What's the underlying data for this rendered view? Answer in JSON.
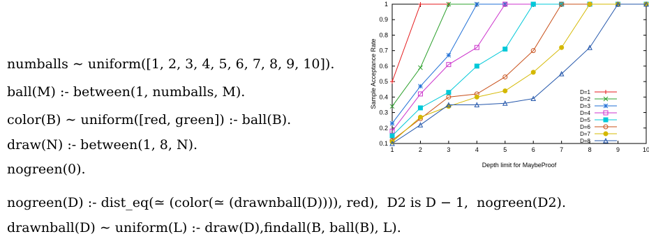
{
  "code": {
    "lines": [
      "numballs ∼ uniform([1, 2, 3, 4, 5, 6, 7, 8, 9, 10]).",
      "ball(M) :- between(1, numballs, M).",
      "color(B) ∼ uniform([red, green]) :- ball(B).",
      "draw(N) :- between(1, 8, N).",
      "nogreen(0).",
      "nogreen(D) :- dist_eq(≃ (color(≃ (drawnball(D)))), red),  D2 is D − 1,  nogreen(D2).",
      "drawnball(D) ∼ uniform(L) :- draw(D),findall(B, ball(B), L)."
    ]
  },
  "chart_data": {
    "type": "line",
    "xlabel": "Depth limit for MaybeProof",
    "ylabel": "Sample Acceptance Rate",
    "xlim": [
      1,
      10
    ],
    "ylim": [
      0.1,
      1
    ],
    "xticks": [
      "1",
      "2",
      "3",
      "4",
      "5",
      "6",
      "7",
      "8",
      "9",
      "10"
    ],
    "yticks": [
      "0.1",
      "0.2",
      "0.3",
      "0.4",
      "0.5",
      "0.6",
      "0.7",
      "0.8",
      "0.9",
      "1"
    ],
    "legend_position": "bottom-right",
    "x": [
      1,
      2,
      3,
      4,
      5,
      6,
      7,
      8,
      9,
      10
    ],
    "series": [
      {
        "name": "D=1",
        "color": "#e41a1c",
        "marker": "plus",
        "values": [
          0.5,
          1,
          1,
          1,
          1,
          1,
          1,
          1,
          1,
          1
        ]
      },
      {
        "name": "D=2",
        "color": "#2ca02c",
        "marker": "x",
        "values": [
          0.34,
          0.59,
          1,
          1,
          1,
          1,
          1,
          1,
          1,
          1
        ]
      },
      {
        "name": "D=3",
        "color": "#1f6fd6",
        "marker": "asterisk",
        "values": [
          0.23,
          0.47,
          0.67,
          1,
          1,
          1,
          1,
          1,
          1,
          1
        ]
      },
      {
        "name": "D=4",
        "color": "#cc33cc",
        "marker": "square",
        "values": [
          0.18,
          0.42,
          0.61,
          0.72,
          1,
          1,
          1,
          1,
          1,
          1
        ]
      },
      {
        "name": "D=5",
        "color": "#00c8d8",
        "marker": "fsquare",
        "values": [
          0.15,
          0.33,
          0.43,
          0.6,
          0.71,
          1,
          1,
          1,
          1,
          1
        ]
      },
      {
        "name": "D=6",
        "color": "#c8501a",
        "marker": "circle",
        "values": [
          0.12,
          0.26,
          0.4,
          0.42,
          0.53,
          0.7,
          1,
          1,
          1,
          1
        ]
      },
      {
        "name": "D=7",
        "color": "#d4b800",
        "marker": "fcircle",
        "values": [
          0.11,
          0.27,
          0.34,
          0.4,
          0.44,
          0.56,
          0.72,
          1,
          1,
          1
        ]
      },
      {
        "name": "D=8",
        "color": "#2255aa",
        "marker": "triangle",
        "values": [
          0.1,
          0.22,
          0.35,
          0.35,
          0.36,
          0.39,
          0.55,
          0.72,
          1,
          1
        ]
      }
    ]
  }
}
